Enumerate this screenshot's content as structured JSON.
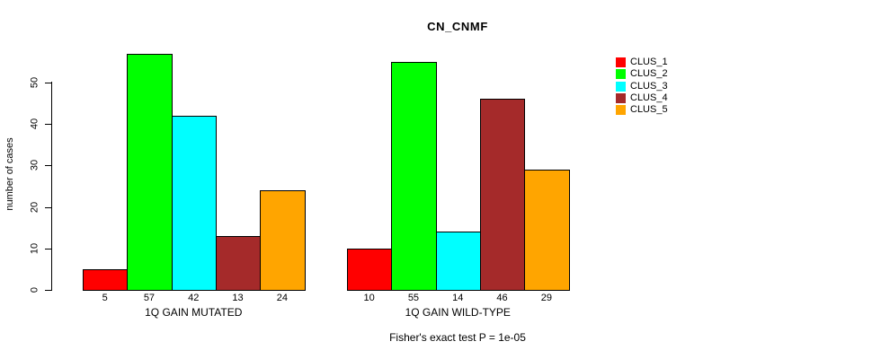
{
  "title": "CN_CNMF",
  "annotation": "Fisher's exact test P = 1e-05",
  "y_axis": {
    "label": "number of cases",
    "ticks": [
      0,
      10,
      20,
      30,
      40,
      50
    ]
  },
  "legend": {
    "position": "right",
    "items": [
      {
        "label": "CLUS_1",
        "color": "#ff0000"
      },
      {
        "label": "CLUS_2",
        "color": "#00ff00"
      },
      {
        "label": "CLUS_3",
        "color": "#00ffff"
      },
      {
        "label": "CLUS_4",
        "color": "#a52a2a"
      },
      {
        "label": "CLUS_5",
        "color": "#ffa500"
      }
    ]
  },
  "chart_data": {
    "type": "bar",
    "title": "CN_CNMF",
    "xlabel": "",
    "ylabel": "number of cases",
    "ylim": [
      0,
      57
    ],
    "y_ticks": [
      0,
      10,
      20,
      30,
      40,
      50
    ],
    "grid": false,
    "legend_position": "right",
    "categories": [
      "1Q GAIN MUTATED",
      "1Q GAIN WILD-TYPE"
    ],
    "series": [
      {
        "name": "CLUS_1",
        "color": "#ff0000",
        "values": [
          5,
          10
        ]
      },
      {
        "name": "CLUS_2",
        "color": "#00ff00",
        "values": [
          57,
          55
        ]
      },
      {
        "name": "CLUS_3",
        "color": "#00ffff",
        "values": [
          42,
          14
        ]
      },
      {
        "name": "CLUS_4",
        "color": "#a52a2a",
        "values": [
          13,
          46
        ]
      },
      {
        "name": "CLUS_5",
        "color": "#ffa500",
        "values": [
          24,
          29
        ]
      }
    ],
    "bar_value_labels_shown": true,
    "annotation": "Fisher's exact test P = 1e-05"
  }
}
